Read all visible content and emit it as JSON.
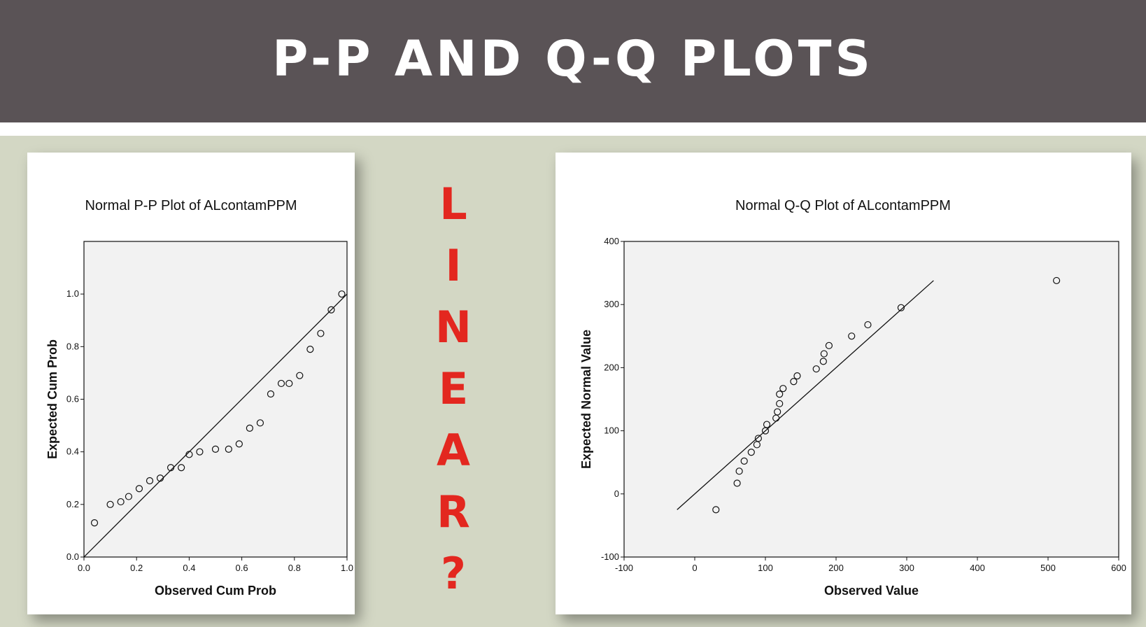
{
  "header": {
    "title": "P-P AND Q-Q PLOTS"
  },
  "side_text": {
    "letters": [
      "L",
      "I",
      "N",
      "E",
      "A",
      "R",
      "?"
    ]
  },
  "colors": {
    "header_bg": "#5a5356",
    "slide_bg": "#d3d7c4",
    "accent": "#e3271f",
    "plot_bg": "#f2f2f2"
  },
  "chart_data": [
    {
      "type": "scatter",
      "title": "Normal P-P Plot of ALcontamPPM",
      "xlabel": "Observed Cum Prob",
      "ylabel": "Expected Cum Prob",
      "xlim": [
        0.0,
        1.0
      ],
      "ylim": [
        0.0,
        1.2
      ],
      "xticks": [
        "0.0",
        "0.2",
        "0.4",
        "0.6",
        "0.8",
        "1.0"
      ],
      "yticks": [
        "0.0",
        "0.2",
        "0.4",
        "0.6",
        "0.8",
        "1.0"
      ],
      "reference_line": [
        [
          0.0,
          0.0
        ],
        [
          1.0,
          1.0
        ]
      ],
      "points": [
        [
          0.04,
          0.13
        ],
        [
          0.1,
          0.2
        ],
        [
          0.14,
          0.21
        ],
        [
          0.17,
          0.23
        ],
        [
          0.21,
          0.26
        ],
        [
          0.25,
          0.29
        ],
        [
          0.29,
          0.3
        ],
        [
          0.33,
          0.34
        ],
        [
          0.37,
          0.34
        ],
        [
          0.4,
          0.39
        ],
        [
          0.44,
          0.4
        ],
        [
          0.5,
          0.41
        ],
        [
          0.55,
          0.41
        ],
        [
          0.59,
          0.43
        ],
        [
          0.63,
          0.49
        ],
        [
          0.67,
          0.51
        ],
        [
          0.71,
          0.62
        ],
        [
          0.75,
          0.66
        ],
        [
          0.78,
          0.66
        ],
        [
          0.82,
          0.69
        ],
        [
          0.86,
          0.79
        ],
        [
          0.9,
          0.85
        ],
        [
          0.94,
          0.94
        ],
        [
          0.98,
          1.0
        ]
      ]
    },
    {
      "type": "scatter",
      "title": "Normal Q-Q Plot of ALcontamPPM",
      "xlabel": "Observed Value",
      "ylabel": "Expected Normal Value",
      "xlim": [
        -100,
        600
      ],
      "ylim": [
        -100,
        400
      ],
      "xticks": [
        "-100",
        "0",
        "100",
        "200",
        "300",
        "400",
        "500",
        "600"
      ],
      "yticks": [
        "-100",
        "0",
        "100",
        "200",
        "300",
        "400"
      ],
      "reference_line": [
        [
          -25,
          -25
        ],
        [
          338,
          338
        ]
      ],
      "points": [
        [
          30,
          -25
        ],
        [
          60,
          17
        ],
        [
          63,
          36
        ],
        [
          70,
          52
        ],
        [
          80,
          66
        ],
        [
          88,
          78
        ],
        [
          90,
          88
        ],
        [
          100,
          100
        ],
        [
          102,
          110
        ],
        [
          115,
          120
        ],
        [
          117,
          130
        ],
        [
          120,
          143
        ],
        [
          120,
          158
        ],
        [
          125,
          167
        ],
        [
          140,
          178
        ],
        [
          145,
          187
        ],
        [
          172,
          198
        ],
        [
          182,
          210
        ],
        [
          183,
          222
        ],
        [
          190,
          235
        ],
        [
          222,
          250
        ],
        [
          245,
          268
        ],
        [
          292,
          295
        ],
        [
          512,
          338
        ]
      ]
    }
  ]
}
